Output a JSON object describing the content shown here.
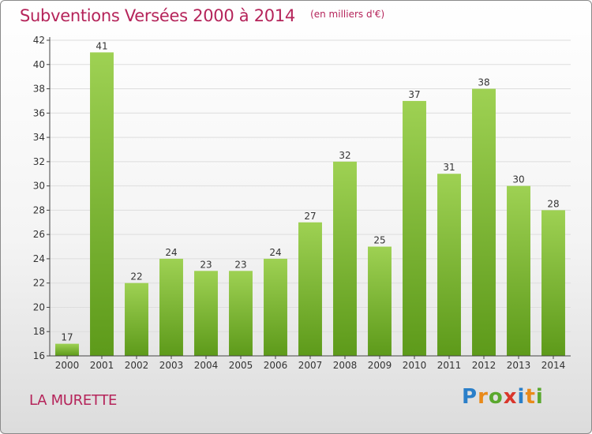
{
  "header": {
    "title": "Subventions Versées 2000 à 2014",
    "unit": "(en milliers d'€)"
  },
  "footer": {
    "commune": "LA MURETTE",
    "brand_letters": [
      {
        "char": "P",
        "color": "#2a7fc9"
      },
      {
        "char": "r",
        "color": "#e98a1a"
      },
      {
        "char": "o",
        "color": "#5aa82e"
      },
      {
        "char": "x",
        "color": "#d9362b"
      },
      {
        "char": "i",
        "color": "#2a7fc9"
      },
      {
        "char": "t",
        "color": "#e98a1a"
      },
      {
        "char": "i",
        "color": "#5aa82e"
      }
    ]
  },
  "colors": {
    "title": "#b5245a",
    "bar_light": "#9ed153",
    "bar_dark": "#5d9a1a",
    "axis": "#444444",
    "grid": "#dddddd"
  },
  "chart_data": {
    "type": "bar",
    "title": "Subventions Versées 2000 à 2014",
    "subtitle": "(en milliers d'€)",
    "categories": [
      "2000",
      "2001",
      "2002",
      "2003",
      "2004",
      "2005",
      "2006",
      "2007",
      "2008",
      "2009",
      "2010",
      "2011",
      "2012",
      "2013",
      "2014"
    ],
    "values": [
      17,
      41,
      22,
      24,
      23,
      23,
      24,
      27,
      32,
      25,
      37,
      31,
      38,
      30,
      28
    ],
    "data_labels": [
      "17",
      "41",
      "22",
      "24",
      "23",
      "23",
      "24",
      "27",
      "32",
      "25",
      "37",
      "31",
      "38",
      "30",
      "28"
    ],
    "ylim": [
      16,
      42
    ],
    "yticks": [
      16,
      18,
      20,
      22,
      24,
      26,
      28,
      30,
      32,
      34,
      36,
      38,
      40,
      42
    ],
    "xlabel": "",
    "ylabel": "",
    "grid": true
  }
}
